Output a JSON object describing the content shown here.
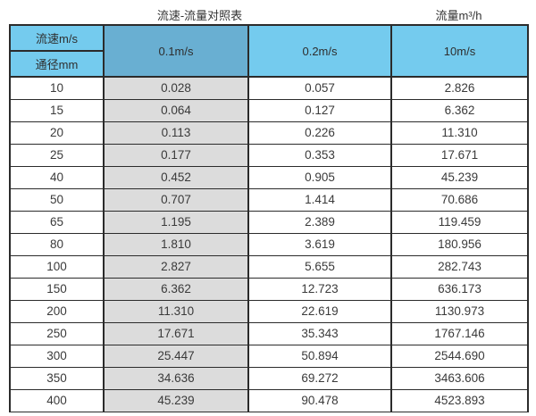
{
  "chart_data": {
    "type": "table",
    "title": "流速-流量对照表",
    "right_unit_label": "流量m³/h",
    "corner_header_top": "流速m/s",
    "corner_header_bottom": "通径mm",
    "velocity_headers": [
      "0.1m/s",
      "0.2m/s",
      "10m/s"
    ],
    "columns": [
      "通径mm",
      "0.1m/s",
      "0.2m/s",
      "10m/s"
    ],
    "rows": [
      {
        "dn_mm": "10",
        "flow_0_1": "0.028",
        "flow_0_2": "0.057",
        "flow_10": "2.826"
      },
      {
        "dn_mm": "15",
        "flow_0_1": "0.064",
        "flow_0_2": "0.127",
        "flow_10": "6.362"
      },
      {
        "dn_mm": "20",
        "flow_0_1": "0.113",
        "flow_0_2": "0.226",
        "flow_10": "11.310"
      },
      {
        "dn_mm": "25",
        "flow_0_1": "0.177",
        "flow_0_2": "0.353",
        "flow_10": "17.671"
      },
      {
        "dn_mm": "40",
        "flow_0_1": "0.452",
        "flow_0_2": "0.905",
        "flow_10": "45.239"
      },
      {
        "dn_mm": "50",
        "flow_0_1": "0.707",
        "flow_0_2": "1.414",
        "flow_10": "70.686"
      },
      {
        "dn_mm": "65",
        "flow_0_1": "1.195",
        "flow_0_2": "2.389",
        "flow_10": "119.459"
      },
      {
        "dn_mm": "80",
        "flow_0_1": "1.810",
        "flow_0_2": "3.619",
        "flow_10": "180.956"
      },
      {
        "dn_mm": "100",
        "flow_0_1": "2.827",
        "flow_0_2": "5.655",
        "flow_10": "282.743"
      },
      {
        "dn_mm": "150",
        "flow_0_1": "6.362",
        "flow_0_2": "12.723",
        "flow_10": "636.173"
      },
      {
        "dn_mm": "200",
        "flow_0_1": "11.310",
        "flow_0_2": "22.619",
        "flow_10": "1130.973"
      },
      {
        "dn_mm": "250",
        "flow_0_1": "17.671",
        "flow_0_2": "35.343",
        "flow_10": "1767.146"
      },
      {
        "dn_mm": "300",
        "flow_0_1": "25.447",
        "flow_0_2": "50.894",
        "flow_10": "2544.690"
      },
      {
        "dn_mm": "350",
        "flow_0_1": "34.636",
        "flow_0_2": "69.272",
        "flow_10": "3463.606"
      },
      {
        "dn_mm": "400",
        "flow_0_1": "45.239",
        "flow_0_2": "90.478",
        "flow_10": "4523.893"
      }
    ]
  },
  "colors": {
    "header_blue": "#74CBEE",
    "header_blue_dark": "#69AFD2",
    "shaded_gray": "#DCDCDC",
    "border_dark": "#2b2b2b",
    "text": "#3a3a3a"
  }
}
